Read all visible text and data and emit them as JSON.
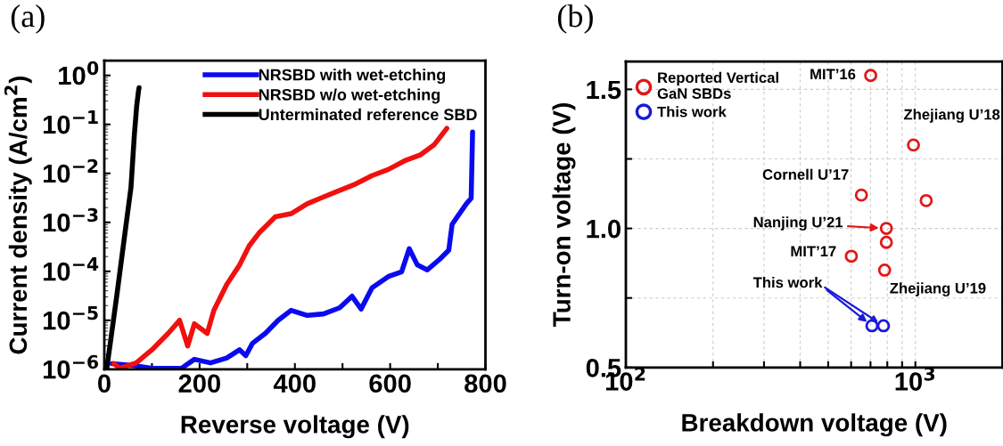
{
  "chart_data": [
    {
      "type": "line",
      "title": "(a)",
      "xlabel": "Reverse voltage (V)",
      "ylabel": "Current density (A/cm$^{2}$)",
      "log": "y",
      "legend": "top right",
      "grid": false,
      "xlim": [
        0,
        800
      ],
      "xticks": [
        0,
        {
          "value": 100,
          "label": null
        },
        200,
        {
          "value": 300,
          "label": null
        },
        400,
        {
          "value": 500,
          "label": null
        },
        600,
        {
          "value": 700,
          "label": null
        },
        800
      ],
      "ylim": [
        1e-06,
        2
      ],
      "yticks": [
        {
          "value": 1e-06,
          "label": "10$^{−6}$"
        },
        {
          "value": 1e-05,
          "label": "10$^{−5}$"
        },
        {
          "value": 0.0001,
          "label": "10$^{−4}$"
        },
        {
          "value": 0.001,
          "label": "10$^{−3}$"
        },
        {
          "value": 0.01,
          "label": "10$^{−2}$"
        },
        {
          "value": 0.1,
          "label": "10$^{−1}$"
        },
        {
          "value": 1,
          "label": "10$^{0}$"
        }
      ],
      "series": [
        {
          "name": "NRSBD with wet-etching",
          "color": "#0a0af0",
          "x": [
            16,
            60,
            100,
            162,
            189,
            223,
            257,
            284,
            297,
            311,
            338,
            365,
            392,
            426,
            460,
            494,
            520,
            539,
            562,
            596,
            624,
            640,
            657,
            678,
            705,
            723,
            730,
            760,
            770,
            773
          ],
          "values": [
            1.3e-06,
            1.2e-06,
            1.05e-06,
            1.05e-06,
            1.6e-06,
            1.35e-06,
            1.7e-06,
            2.5e-06,
            1.9e-06,
            3.4e-06,
            5.4e-06,
            1e-05,
            1.6e-05,
            1.26e-05,
            1.35e-05,
            1.8e-05,
            3.1e-05,
            1.7e-05,
            4.6e-05,
            7.8e-05,
            9.8e-05,
            0.00029,
            0.000135,
            0.000107,
            0.00018,
            0.00027,
            0.00091,
            0.0024,
            0.0031,
            0.07
          ]
        },
        {
          "name": "NRSBD w/o wet-etching",
          "color": "#f01010",
          "x": [
            20,
            33,
            67,
            100,
            134,
            158,
            175,
            189,
            216,
            230,
            257,
            284,
            304,
            325,
            359,
            392,
            426,
            460,
            494,
            528,
            562,
            596,
            630,
            664,
            692,
            719
          ],
          "values": [
            1.3e-06,
            1.05e-06,
            1.35e-06,
            2.5e-06,
            5.4e-06,
            1e-05,
            3e-06,
            8.5e-06,
            5.4e-06,
            1.6e-05,
            5.4e-05,
            0.000135,
            0.00033,
            0.00061,
            0.0013,
            0.0015,
            0.0024,
            0.0033,
            0.0045,
            0.0061,
            0.009,
            0.012,
            0.018,
            0.024,
            0.038,
            0.083
          ]
        },
        {
          "name": "Unterminated reference SBD",
          "color": "#000000",
          "x": [
            5,
            26,
            46,
            56,
            63,
            68,
            72,
            73
          ],
          "values": [
            1e-06,
            3.1e-05,
            0.00095,
            0.0052,
            0.06,
            0.24,
            0.5,
            0.56
          ]
        }
      ]
    },
    {
      "type": "scatter",
      "title": "(b)",
      "xlabel": "Breakdown voltage (V)",
      "ylabel": "Turn-on voltage (V)",
      "log": "x",
      "legend": "top left",
      "grid": true,
      "marker": "circle",
      "xlim": [
        100,
        2000
      ],
      "xticks": [
        {
          "value": 100,
          "label": "10$^{2}$"
        },
        {
          "value": 200,
          "label": null
        },
        {
          "value": 300,
          "label": null
        },
        {
          "value": 400,
          "label": null
        },
        {
          "value": 500,
          "label": null
        },
        {
          "value": 600,
          "label": null
        },
        {
          "value": 700,
          "label": null
        },
        {
          "value": 800,
          "label": null
        },
        {
          "value": 900,
          "label": null
        },
        {
          "value": 1000,
          "label": "10$^{3}$"
        }
      ],
      "ylim": [
        0.5,
        1.6
      ],
      "yticks": [
        0.5,
        {
          "value": 0.75,
          "label": null
        },
        {
          "value": 1.0,
          "label": "1.0"
        },
        {
          "value": 1.25,
          "label": null
        },
        1.5
      ],
      "series": [
        {
          "name": "Reported Vertical\nGaN SBDs",
          "color": "#e01818",
          "x": [
            701,
            985,
            651,
            1090,
            794,
            794,
            601,
            783
          ],
          "values": [
            1.55,
            1.3,
            1.12,
            1.1,
            1.0,
            0.95,
            0.9,
            0.85
          ]
        },
        {
          "name": "This work",
          "color": "#1a1ad8",
          "x": [
            708,
            776
          ],
          "values": [
            0.65,
            0.65
          ]
        }
      ],
      "annotations": [
        {
          "text": "MIT’16",
          "x": 701,
          "y": 1.55
        },
        {
          "text": "Zhejiang U’18",
          "x": 985,
          "y": 1.3
        },
        {
          "text": "Cornell U’17",
          "x": 651,
          "y": 1.12
        },
        {
          "text": "Nanjing U’21",
          "x": 794,
          "y": 1.0
        },
        {
          "text": "MIT’17",
          "x": 601,
          "y": 0.9
        },
        {
          "text": "Zhejiang U’19",
          "x": 783,
          "y": 0.85
        },
        {
          "text": "This work",
          "x": 708,
          "y": 0.65
        }
      ]
    }
  ]
}
